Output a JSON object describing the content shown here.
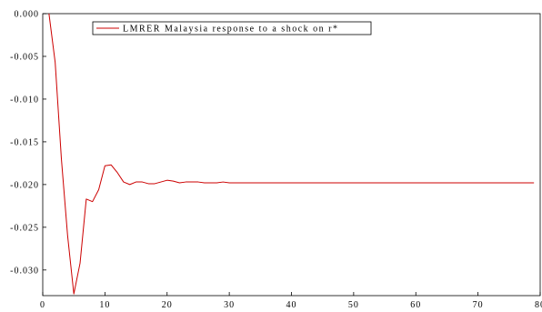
{
  "chart_data": {
    "type": "line",
    "title": "",
    "xlabel": "",
    "ylabel": "",
    "xlim": [
      0,
      80
    ],
    "ylim": [
      -0.033,
      0.0
    ],
    "x_ticks": [
      0,
      10,
      20,
      30,
      40,
      50,
      60,
      70,
      80
    ],
    "x_tick_labels": [
      "0",
      "10",
      "20",
      "30",
      "40",
      "50",
      "60",
      "70",
      "80"
    ],
    "y_ticks": [
      0.0,
      -0.005,
      -0.01,
      -0.015,
      -0.02,
      -0.025,
      -0.03
    ],
    "y_tick_labels": [
      "0.000",
      "-0.005",
      "-0.010",
      "-0.015",
      "-0.020",
      "-0.025",
      "-0.030"
    ],
    "grid": false,
    "legend_position": "top-center",
    "series": [
      {
        "name": "LMRER Malaysia response to a shock on r*",
        "color": "#cc0000",
        "x": [
          1,
          2,
          3,
          4,
          5,
          6,
          7,
          8,
          9,
          10,
          11,
          12,
          13,
          14,
          15,
          16,
          17,
          18,
          19,
          20,
          21,
          22,
          23,
          24,
          25,
          26,
          27,
          28,
          29,
          30,
          31,
          32,
          33,
          34,
          35,
          36,
          37,
          38,
          39,
          40,
          41,
          42,
          43,
          44,
          45,
          46,
          47,
          48,
          49,
          50,
          51,
          52,
          53,
          54,
          55,
          56,
          57,
          58,
          59,
          60,
          61,
          62,
          63,
          64,
          65,
          66,
          67,
          68,
          69,
          70,
          71,
          72,
          73,
          74,
          75,
          76,
          77,
          78,
          79
        ],
        "values": [
          0.0,
          -0.0057,
          -0.017,
          -0.026,
          -0.0328,
          -0.0292,
          -0.0217,
          -0.022,
          -0.0206,
          -0.0178,
          -0.0177,
          -0.0186,
          -0.0197,
          -0.02,
          -0.0197,
          -0.0197,
          -0.0199,
          -0.0199,
          -0.0197,
          -0.0195,
          -0.0196,
          -0.0198,
          -0.0197,
          -0.0197,
          -0.0197,
          -0.0198,
          -0.0198,
          -0.0198,
          -0.0197,
          -0.0198,
          -0.0198,
          -0.0198,
          -0.0198,
          -0.0198,
          -0.0198,
          -0.0198,
          -0.0198,
          -0.0198,
          -0.0198,
          -0.0198,
          -0.0198,
          -0.0198,
          -0.0198,
          -0.0198,
          -0.0198,
          -0.0198,
          -0.0198,
          -0.0198,
          -0.0198,
          -0.0198,
          -0.0198,
          -0.0198,
          -0.0198,
          -0.0198,
          -0.0198,
          -0.0198,
          -0.0198,
          -0.0198,
          -0.0198,
          -0.0198,
          -0.0198,
          -0.0198,
          -0.0198,
          -0.0198,
          -0.0198,
          -0.0198,
          -0.0198,
          -0.0198,
          -0.0198,
          -0.0198,
          -0.0198,
          -0.0198,
          -0.0198,
          -0.0198,
          -0.0198,
          -0.0198,
          -0.0198,
          -0.0198,
          -0.0198
        ]
      }
    ]
  }
}
